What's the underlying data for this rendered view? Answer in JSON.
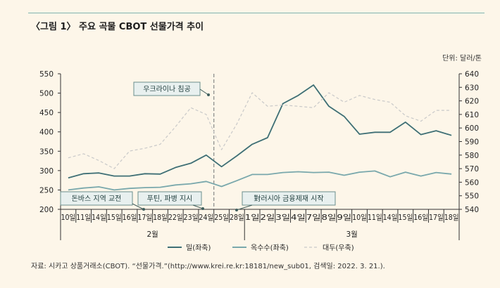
{
  "header": {
    "title": "〈그림 1〉 주요 곡물 CBOT 선물가격 추이",
    "unit": "단위: 달러/톤"
  },
  "footer": {
    "source": "자료: 시카고 상품거래소(CBOT). “선물가격.”(http://www.krei.re.kr:18181/new_sub01, 검색일: 2022. 3. 21.)."
  },
  "colors": {
    "wheat": "#3e6f75",
    "corn": "#79a8ac",
    "soybean": "#c9c9c9",
    "callout_fill": "#e8f0ef",
    "callout_border": "#6a8f8d",
    "background": "#fdf6e9"
  },
  "chart_data": {
    "type": "line",
    "x": [
      "10일",
      "11일",
      "14일",
      "15일",
      "16일",
      "17일",
      "18일",
      "22일",
      "23일",
      "24일",
      "25일",
      "28일",
      "1일",
      "2일",
      "3일",
      "4일",
      "7일",
      "8일",
      "9일",
      "10일",
      "11일",
      "14일",
      "15일",
      "16일",
      "17일",
      "18일"
    ],
    "month_groups": [
      {
        "label": "2월",
        "start": 0,
        "end": 11
      },
      {
        "label": "3월",
        "start": 12,
        "end": 25
      }
    ],
    "y_left": {
      "min": 200,
      "max": 550,
      "ticks": [
        200,
        250,
        300,
        350,
        400,
        450,
        500,
        550
      ]
    },
    "y_right": {
      "min": 540,
      "max": 640,
      "ticks": [
        540,
        550,
        560,
        570,
        580,
        590,
        600,
        610,
        620,
        630,
        640
      ]
    },
    "series": [
      {
        "name": "밀(좌축)",
        "axis": "left",
        "style": "solid",
        "color_key": "wheat",
        "values": [
          281,
          292,
          294,
          286,
          286,
          292,
          291,
          308,
          319,
          340,
          310,
          338,
          368,
          385,
          473,
          494,
          521,
          466,
          440,
          394,
          399,
          399,
          425,
          393,
          403,
          391
        ]
      },
      {
        "name": "옥수수(좌축)",
        "axis": "left",
        "style": "solid",
        "color_key": "corn",
        "values": [
          250,
          255,
          258,
          250,
          254,
          256,
          257,
          263,
          266,
          272,
          259,
          274,
          290,
          290,
          295,
          297,
          295,
          296,
          288,
          296,
          299,
          284,
          296,
          286,
          295,
          291
        ]
      },
      {
        "name": "대두(우축)",
        "axis": "right",
        "style": "dashed",
        "color_key": "soybean",
        "values": [
          578,
          581,
          576,
          570,
          583,
          585,
          588,
          601,
          615,
          610,
          584,
          603,
          626,
          616,
          617,
          616,
          615,
          626,
          619,
          624,
          621,
          619,
          609,
          605,
          613,
          613
        ]
      }
    ],
    "event_line_after": "24일",
    "annotations": [
      {
        "text": "우크라이나 침공",
        "anchor_index": 9
      },
      {
        "text": "돈바스 지역 교전",
        "anchor_index": 5
      },
      {
        "text": "푸틴, 파병 지시",
        "anchor_index": 8
      },
      {
        "text": "對러시아 금융제재 시작",
        "anchor_index": 11
      }
    ],
    "grid": false,
    "legend_position": "bottom"
  }
}
